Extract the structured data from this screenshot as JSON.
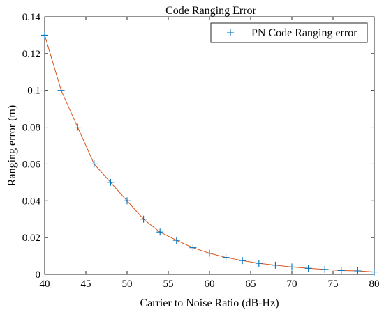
{
  "chart_data": {
    "type": "line",
    "title": "Code Ranging Error",
    "xlabel": "Carrier to Noise Ratio (dB-Hz)",
    "ylabel": "Ranging error (m)",
    "xlim": [
      40,
      80
    ],
    "ylim": [
      0,
      0.14
    ],
    "xticks": [
      40,
      45,
      50,
      55,
      60,
      65,
      70,
      75,
      80
    ],
    "yticks": [
      0,
      0.02,
      0.04,
      0.06,
      0.08,
      0.1,
      0.12,
      0.14
    ],
    "xtick_labels": [
      "40",
      "45",
      "50",
      "55",
      "60",
      "65",
      "70",
      "75",
      "80"
    ],
    "ytick_labels": [
      "0",
      "0.02",
      "0.04",
      "0.06",
      "0.08",
      "0.1",
      "0.12",
      "0.14"
    ],
    "grid": false,
    "legend_position": "top-right",
    "x": [
      40,
      42,
      44,
      46,
      48,
      50,
      52,
      54,
      56,
      58,
      60,
      62,
      64,
      66,
      68,
      70,
      72,
      74,
      76,
      78,
      80
    ],
    "series": [
      {
        "name": "PN Code Ranging error",
        "line_color": "#D95319",
        "marker_color": "#0072BD",
        "marker": "+",
        "values": [
          0.13,
          0.1,
          0.08,
          0.06,
          0.05,
          0.04,
          0.03,
          0.023,
          0.0185,
          0.0145,
          0.0115,
          0.0092,
          0.0075,
          0.006,
          0.005,
          0.004,
          0.0033,
          0.0027,
          0.0021,
          0.0019,
          0.0013
        ]
      }
    ]
  }
}
